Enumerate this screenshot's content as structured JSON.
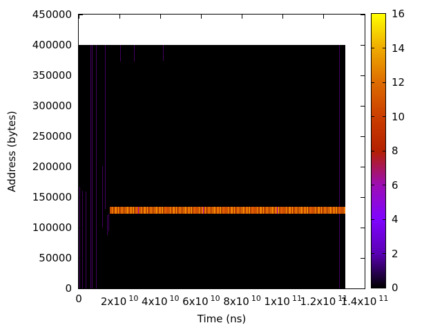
{
  "chart_data": {
    "type": "heatmap",
    "title": "",
    "xlabel": "Time (ns)",
    "ylabel": "Address (bytes)",
    "xlim": [
      0,
      140000000000
    ],
    "ylim": [
      0,
      450000
    ],
    "grid": false,
    "background_color": "#ffffff",
    "x_ticks": [
      {
        "label": "0",
        "exp": "",
        "value": 0
      },
      {
        "label": "2x10",
        "exp": "10",
        "value": 20000000000
      },
      {
        "label": "4x10",
        "exp": "10",
        "value": 40000000000
      },
      {
        "label": "6x10",
        "exp": "10",
        "value": 60000000000
      },
      {
        "label": "8x10",
        "exp": "10",
        "value": 80000000000
      },
      {
        "label": "1x10",
        "exp": "11",
        "value": 100000000000
      },
      {
        "label": "1.2x10",
        "exp": "11",
        "value": 120000000000
      },
      {
        "label": "1.4x10",
        "exp": "11",
        "value": 140000000000
      }
    ],
    "y_ticks": [
      {
        "label": "0",
        "value": 0
      },
      {
        "label": "50000",
        "value": 50000
      },
      {
        "label": "100000",
        "value": 100000
      },
      {
        "label": "150000",
        "value": 150000
      },
      {
        "label": "200000",
        "value": 200000
      },
      {
        "label": "250000",
        "value": 250000
      },
      {
        "label": "300000",
        "value": 300000
      },
      {
        "label": "350000",
        "value": 350000
      },
      {
        "label": "400000",
        "value": 400000
      },
      {
        "label": "450000",
        "value": 450000
      }
    ],
    "colorbar": {
      "min": 0,
      "max": 16,
      "legend_position": "right",
      "ticks": [
        {
          "label": "0",
          "value": 0
        },
        {
          "label": "2",
          "value": 2
        },
        {
          "label": "4",
          "value": 4
        },
        {
          "label": "6",
          "value": 6
        },
        {
          "label": "8",
          "value": 8
        },
        {
          "label": "10",
          "value": 10
        },
        {
          "label": "12",
          "value": 12
        },
        {
          "label": "14",
          "value": 14
        },
        {
          "label": "16",
          "value": 16
        }
      ],
      "palette": [
        {
          "value": 0,
          "color": "#000000"
        },
        {
          "value": 2,
          "color": "#5a00b4"
        },
        {
          "value": 4,
          "color": "#8004ff"
        },
        {
          "value": 6,
          "color": "#9c0db4"
        },
        {
          "value": 8,
          "color": "#b42000"
        },
        {
          "value": 10,
          "color": "#ca3e00"
        },
        {
          "value": 12,
          "color": "#dd6c00"
        },
        {
          "value": 14,
          "color": "#efab00"
        },
        {
          "value": 16,
          "color": "#ffff00"
        }
      ]
    },
    "heatmap": {
      "data_region": {
        "x": [
          0,
          130600000000
        ],
        "y": [
          0,
          400000
        ],
        "color": "#000000"
      },
      "vline_color": "#440060",
      "vlines": [
        {
          "x": 500000000,
          "y": [
            0,
            167000
          ]
        },
        {
          "x": 1700000000,
          "y": [
            0,
            160000
          ]
        },
        {
          "x": 3400000000,
          "y": [
            0,
            159000
          ]
        },
        {
          "x": 5800000000,
          "y": [
            0,
            400000
          ]
        },
        {
          "x": 6600000000,
          "y": [
            0,
            400000
          ]
        },
        {
          "x": 8500000000,
          "y": [
            0,
            400000
          ]
        },
        {
          "x": 11500000000,
          "y": [
            100000,
            201000
          ]
        },
        {
          "x": 12900000000,
          "y": [
            131000,
            400000
          ]
        },
        {
          "x": 13900000000,
          "y": [
            88000,
            120000
          ]
        },
        {
          "x": 14800000000,
          "y": [
            94000,
            123000
          ]
        },
        {
          "x": 20300000000,
          "y": [
            373000,
            400000
          ]
        },
        {
          "x": 27100000000,
          "y": [
            373000,
            400000
          ]
        },
        {
          "x": 41300000000,
          "y": [
            374000,
            400000
          ]
        },
        {
          "x": 127700000000,
          "y": [
            0,
            400000
          ]
        }
      ],
      "stripe": {
        "x": [
          15200000000,
          130600000000
        ],
        "y": [
          123000,
          134500
        ],
        "bands": [
          {
            "c": "#c85200",
            "w": 3
          },
          {
            "c": "#e87400",
            "w": 2
          },
          {
            "c": "#a83800",
            "w": 2
          },
          {
            "c": "#f08000",
            "w": 3
          },
          {
            "c": "#c04800",
            "w": 2
          },
          {
            "c": "#ff9c00",
            "w": 1
          },
          {
            "c": "#b84400",
            "w": 3
          },
          {
            "c": "#e06800",
            "w": 4
          },
          {
            "c": "#902c00",
            "w": 1
          },
          {
            "c": "#d35f00",
            "w": 4
          },
          {
            "c": "#f58a00",
            "w": 2
          },
          {
            "c": "#b03c00",
            "w": 2
          },
          {
            "c": "#e87400",
            "w": 3
          },
          {
            "c": "#c85200",
            "w": 2
          },
          {
            "c": "#ffae00",
            "w": 1
          },
          {
            "c": "#a83800",
            "w": 2
          },
          {
            "c": "#e06000",
            "w": 3
          },
          {
            "c": "#d04c00",
            "w": 2
          }
        ],
        "fleck_color": "#b400b4",
        "flecks": [
          29000000000,
          61000000000,
          97000000000
        ]
      }
    }
  }
}
